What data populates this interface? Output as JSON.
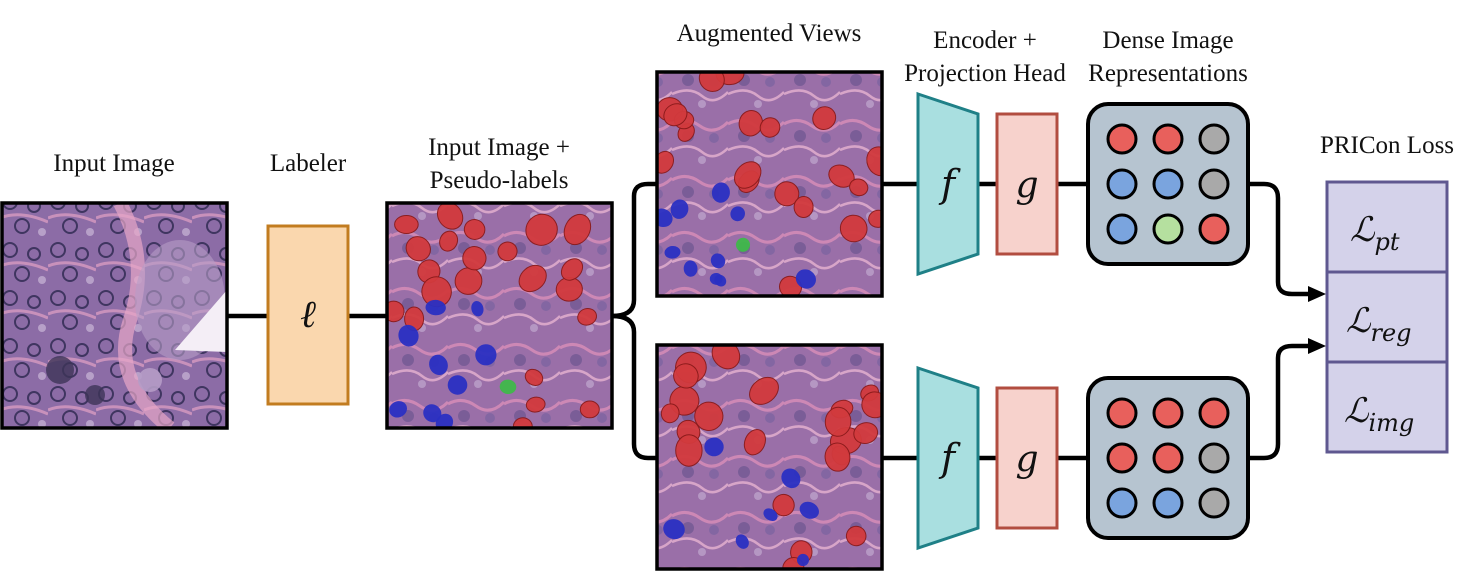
{
  "labels": {
    "input_image": "Input Image",
    "labeler": "Labeler",
    "input_plus_line1": "Input Image +",
    "input_plus_line2": "Pseudo-labels",
    "augmented_views": "Augmented Views",
    "encoder_line1": "Encoder +",
    "encoder_line2": "Projection Head",
    "dense_line1": "Dense Image",
    "dense_line2": "Representations",
    "loss_title": "PRICon Loss"
  },
  "symbols": {
    "labeler": "ℓ",
    "encoder": "f",
    "projection": "g"
  },
  "loss_terms": [
    {
      "base": "ℒ",
      "sub": "pt"
    },
    {
      "base": "ℒ",
      "sub": "reg"
    },
    {
      "base": "ℒ",
      "sub": "img"
    }
  ],
  "dense_grids": {
    "top": [
      "red",
      "red",
      "gray",
      "blue",
      "blue",
      "gray",
      "blue",
      "green",
      "red"
    ],
    "bottom": [
      "red",
      "red",
      "red",
      "red",
      "red",
      "gray",
      "blue",
      "blue",
      "gray"
    ]
  },
  "colors": {
    "red": "#e8605c",
    "blue": "#7aa4de",
    "gray": "#a9a9a9",
    "green": "#b5e09f",
    "labeler_fill": "#fad7ae",
    "labeler_stroke": "#c27c20",
    "encoder_fill": "#a9dfe0",
    "encoder_stroke": "#1f8087",
    "proj_fill": "#f7d2cc",
    "proj_stroke": "#b24d40",
    "dense_fill": "#b6c4d0",
    "loss_fill": "#d4d2ea",
    "loss_stroke": "#5f5890"
  }
}
